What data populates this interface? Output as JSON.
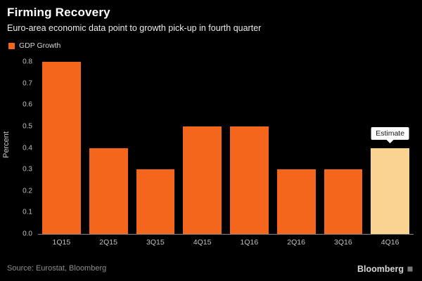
{
  "header": {
    "title": "Firming Recovery",
    "subtitle": "Euro-area economic data point to growth pick-up in fourth quarter"
  },
  "legend": {
    "label": "GDP Growth",
    "color": "#f4661b"
  },
  "chart_data": {
    "type": "bar",
    "categories": [
      "1Q15",
      "2Q15",
      "3Q15",
      "4Q15",
      "1Q16",
      "2Q16",
      "3Q16",
      "4Q16"
    ],
    "values": [
      0.8,
      0.4,
      0.3,
      0.5,
      0.5,
      0.3,
      0.3,
      0.4
    ],
    "title": "Firming Recovery",
    "xlabel": "",
    "ylabel": "Percent",
    "ylim": [
      0,
      0.8
    ],
    "yticks": [
      "0.0",
      "0.1",
      "0.2",
      "0.3",
      "0.4",
      "0.5",
      "0.6",
      "0.7",
      "0.8"
    ],
    "grid": false,
    "legend_position": "top-left",
    "bar_color": "#f4661b",
    "estimate_color": "#fad393",
    "estimate_index": 7,
    "annotation": "Estimate"
  },
  "footer": {
    "source": "Source: Eurostat, Bloomberg",
    "brand": "Bloomberg"
  }
}
